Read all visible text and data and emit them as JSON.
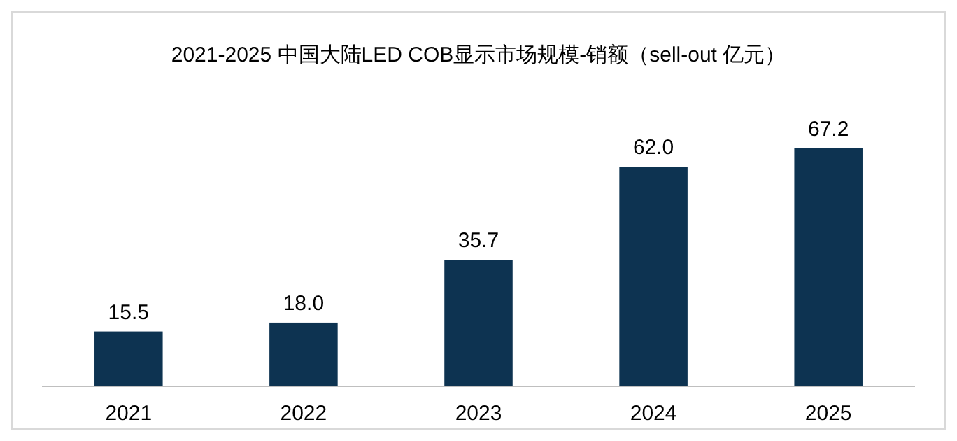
{
  "chart_data": {
    "type": "bar",
    "title": "2021-2025 中国大陆LED COB显示市场规模-销额（sell-out 亿元）",
    "categories": [
      "2021",
      "2022",
      "2023",
      "2024",
      "2025"
    ],
    "values": [
      15.5,
      18.0,
      35.7,
      62.0,
      67.2
    ],
    "value_labels": [
      "15.5",
      "18.0",
      "35.7",
      "62.0",
      "67.2"
    ],
    "color": "#0d3351"
  }
}
